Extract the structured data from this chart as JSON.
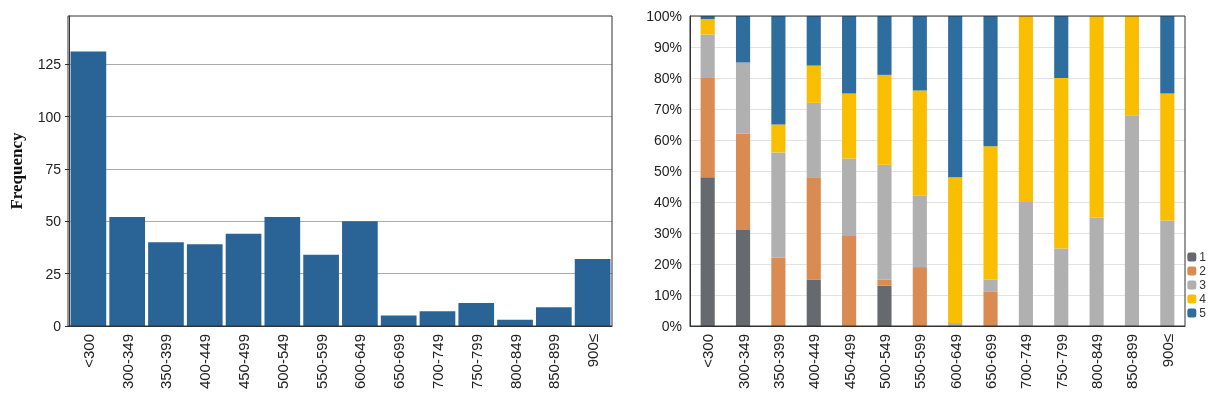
{
  "chart_data": [
    {
      "type": "bar",
      "ylabel": "Frequency",
      "categories": [
        "<300",
        "300-349",
        "350-399",
        "400-449",
        "450-499",
        "500-549",
        "550-599",
        "600-649",
        "650-699",
        "700-749",
        "750-799",
        "800-849",
        "850-899",
        "900≤"
      ],
      "values": [
        131,
        52,
        40,
        39,
        44,
        52,
        34,
        50,
        5,
        7,
        11,
        3,
        9,
        32
      ],
      "color": "#2a6497",
      "ylim": [
        0,
        148
      ],
      "yticks": [
        0,
        25,
        50,
        75,
        100,
        125
      ],
      "grid": "y",
      "legend": false
    },
    {
      "type": "bar",
      "stacked": true,
      "categories": [
        "<300",
        "300-349",
        "350-399",
        "400-449",
        "450-499",
        "500-549",
        "550-599",
        "600-649",
        "650-699",
        "700-749",
        "750-799",
        "800-849",
        "850-899",
        "900≤"
      ],
      "series": [
        {
          "name": "1",
          "color": "#666a6e",
          "values": [
            48,
            31,
            0,
            15,
            0,
            13,
            0,
            0,
            0,
            0,
            0,
            0,
            0,
            0
          ]
        },
        {
          "name": "2",
          "color": "#d98b52",
          "values": [
            32,
            31,
            22,
            33,
            29,
            2,
            19,
            0,
            11,
            0,
            0,
            0,
            0,
            0
          ]
        },
        {
          "name": "3",
          "color": "#b0b0b0",
          "values": [
            14,
            23,
            34,
            24,
            25,
            37,
            23,
            1,
            4,
            40,
            25,
            35,
            68,
            34
          ]
        },
        {
          "name": "4",
          "color": "#f9be00",
          "values": [
            5,
            0,
            9,
            12,
            21,
            29,
            34,
            47,
            43,
            60,
            55,
            65,
            32,
            41
          ]
        },
        {
          "name": "5",
          "color": "#2e6e9e",
          "values": [
            1,
            15,
            35,
            16,
            25,
            19,
            24,
            52,
            42,
            0,
            20,
            0,
            0,
            25
          ]
        }
      ],
      "ylim": [
        0,
        100
      ],
      "yticks": [
        {
          "value": 0,
          "label": "0%"
        },
        {
          "value": 10,
          "label": "10%"
        },
        {
          "value": 20,
          "label": "20%"
        },
        {
          "value": 30,
          "label": "30%"
        },
        {
          "value": 40,
          "label": "40%"
        },
        {
          "value": 50,
          "label": "50%"
        },
        {
          "value": 60,
          "label": "60%"
        },
        {
          "value": 70,
          "label": "70%"
        },
        {
          "value": 80,
          "label": "80%"
        },
        {
          "value": 90,
          "label": "90%"
        },
        {
          "value": 100,
          "label": "100%"
        }
      ],
      "grid": "y",
      "legend": "bottom right"
    }
  ]
}
